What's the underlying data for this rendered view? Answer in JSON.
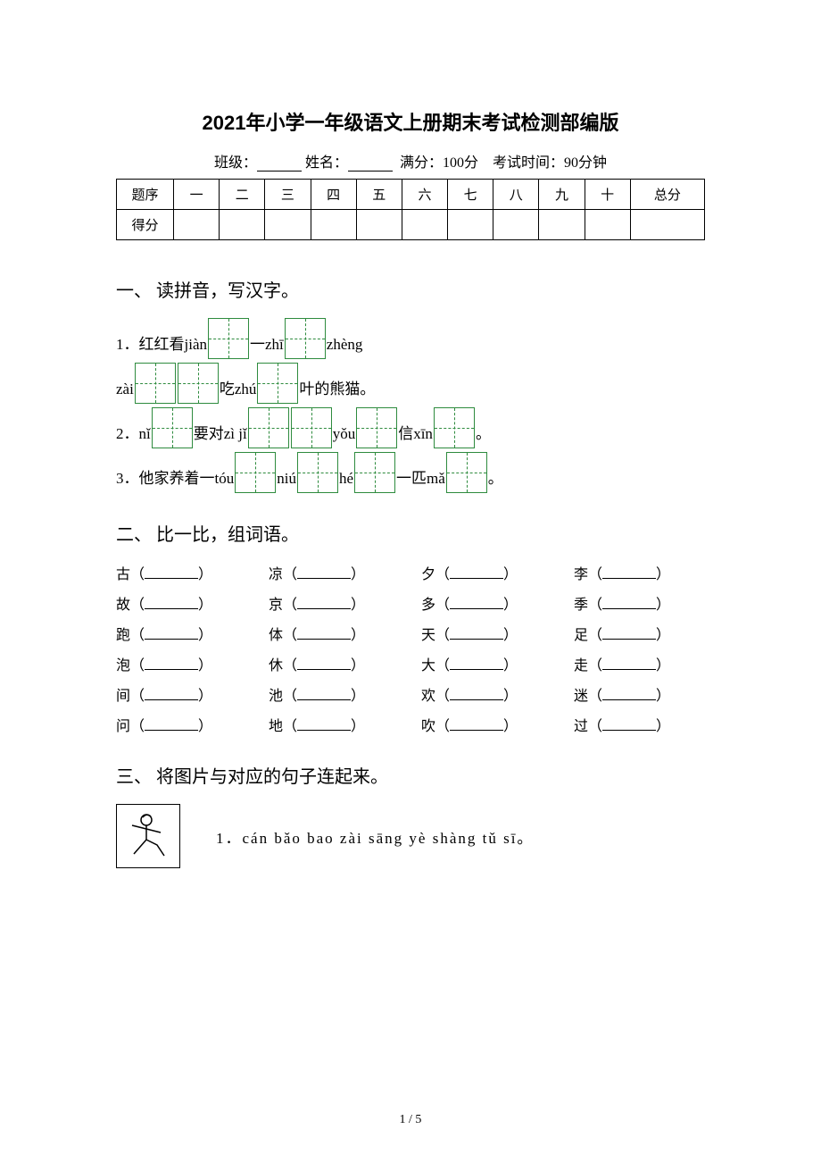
{
  "title": "2021年小学一年级语文上册期末考试检测部编版",
  "meta": {
    "class_label": "班级：",
    "name_label": "姓名：",
    "fullscore_label": "满分：100分",
    "time_label": "考试时间：90分钟"
  },
  "score_table": {
    "row1_label": "题序",
    "row2_label": "得分",
    "headers": [
      "一",
      "二",
      "三",
      "四",
      "五",
      "六",
      "七",
      "八",
      "九",
      "十",
      "总分"
    ]
  },
  "section1": {
    "heading": "一、 读拼音，写汉字。",
    "q1_a": "1．红红看jiàn",
    "q1_b": "一zhī",
    "q1_c": "zhèng",
    "q1_d": "zài",
    "q1_e": "吃zhú",
    "q1_f": "叶的熊猫。",
    "q2_a": "2．nǐ",
    "q2_b": "要对zì jǐ",
    "q2_c": "yǒu",
    "q2_d": "信xīn",
    "q2_e": "。",
    "q3_a": "3．他家养着一tóu",
    "q3_b": "niú",
    "q3_c": "hé",
    "q3_d": "一匹mǎ",
    "q3_e": "。"
  },
  "section2": {
    "heading": "二、 比一比，组词语。",
    "rows": [
      [
        "古",
        "凉",
        "夕",
        "李"
      ],
      [
        "故",
        "京",
        "多",
        "季"
      ],
      [
        "跑",
        "体",
        "天",
        "足"
      ],
      [
        "泡",
        "休",
        "大",
        "走"
      ],
      [
        "间",
        "池",
        "欢",
        "迷"
      ],
      [
        "问",
        "地",
        "吹",
        "过"
      ]
    ]
  },
  "section3": {
    "heading": "三、 将图片与对应的句子连起来。",
    "item1": "1．cán bǎo bao zài sāng yè shàng tǔ sī。"
  },
  "page_number": "1 / 5",
  "colors": {
    "tian_border": "#2e8b3e",
    "text": "#000000",
    "bg": "#ffffff"
  }
}
